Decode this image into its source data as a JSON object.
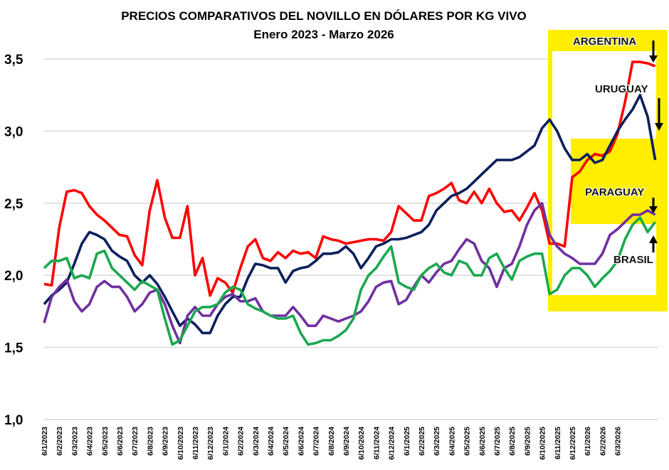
{
  "chart_data": {
    "type": "line",
    "title": "PRECIOS COMPARATIVOS DEL NOVILLO EN DÓLARES POR KG VIVO",
    "subtitle": "Enero 2023 - Marzo 2026",
    "xlabel": "",
    "ylabel": "",
    "ylim": [
      1.0,
      3.5
    ],
    "yticks": [
      "1,0",
      "1,5",
      "2,0",
      "2,5",
      "3,0",
      "3,5"
    ],
    "ytick_values": [
      1.0,
      1.5,
      2.0,
      2.5,
      3.0,
      3.5
    ],
    "grid": true,
    "x_step_months": 0.5,
    "xtick_labels": [
      "6/1/2023",
      "6/2/2023",
      "6/3/2023",
      "6/4/2023",
      "6/5/2023",
      "6/6/2023",
      "6/7/2023",
      "6/8/2023",
      "6/9/2023",
      "6/10/2023",
      "6/11/2023",
      "6/12/2023",
      "6/1/2024",
      "6/2/2024",
      "6/3/2024",
      "6/4/2024",
      "6/5/2024",
      "6/6/2024",
      "6/7/2024",
      "6/8/2024",
      "6/9/2024",
      "6/10/2024",
      "6/11/2024",
      "6/12/2024",
      "6/1/2025",
      "6/2/2025",
      "6/3/2025",
      "6/4/2025",
      "6/5/2025",
      "6/6/2025",
      "6/7/2025",
      "6/8/2025",
      "6/9/2025",
      "6/10/2025",
      "6/11/2025",
      "6/12/2025",
      "6/1/2026",
      "6/2/2026",
      "6/3/2026"
    ],
    "series": [
      {
        "name": "ARGENTINA",
        "color": "#ff0000",
        "values": [
          1.94,
          1.93,
          2.33,
          2.58,
          2.59,
          2.57,
          2.48,
          2.42,
          2.38,
          2.33,
          2.28,
          2.27,
          2.14,
          2.07,
          2.45,
          2.66,
          2.4,
          2.26,
          2.26,
          2.48,
          2.0,
          2.12,
          1.86,
          1.98,
          1.95,
          1.88,
          2.05,
          2.2,
          2.25,
          2.12,
          2.1,
          2.16,
          2.12,
          2.17,
          2.15,
          2.16,
          2.12,
          2.27,
          2.25,
          2.24,
          2.22,
          2.23,
          2.24,
          2.25,
          2.25,
          2.24,
          2.3,
          2.48,
          2.43,
          2.38,
          2.38,
          2.55,
          2.57,
          2.6,
          2.64,
          2.52,
          2.5,
          2.58,
          2.5,
          2.6,
          2.5,
          2.44,
          2.45,
          2.38,
          2.47,
          2.57,
          2.45,
          2.22,
          2.22,
          2.2,
          2.68,
          2.72,
          2.8,
          2.84,
          2.83,
          2.86,
          2.98,
          3.2,
          3.48,
          3.48,
          3.47,
          3.45
        ]
      },
      {
        "name": "URUGUAY",
        "color": "#0b1f5c",
        "values": [
          1.8,
          1.86,
          1.9,
          1.95,
          2.08,
          2.22,
          2.3,
          2.28,
          2.25,
          2.17,
          2.13,
          2.1,
          2.0,
          1.95,
          2.0,
          1.94,
          1.85,
          1.75,
          1.65,
          1.7,
          1.66,
          1.6,
          1.6,
          1.72,
          1.8,
          1.85,
          1.85,
          1.98,
          2.08,
          2.07,
          2.05,
          2.05,
          1.95,
          2.03,
          2.05,
          2.06,
          2.1,
          2.15,
          2.15,
          2.16,
          2.2,
          2.15,
          2.05,
          2.12,
          2.2,
          2.22,
          2.25,
          2.25,
          2.26,
          2.28,
          2.3,
          2.35,
          2.45,
          2.5,
          2.55,
          2.57,
          2.6,
          2.65,
          2.7,
          2.75,
          2.8,
          2.8,
          2.8,
          2.82,
          2.86,
          2.9,
          3.02,
          3.08,
          3.0,
          2.88,
          2.8,
          2.8,
          2.84,
          2.78,
          2.8,
          2.9,
          3.0,
          3.08,
          3.15,
          3.25,
          3.1,
          2.8
        ]
      },
      {
        "name": "PARAGUAY",
        "color": "#7030a0",
        "values": [
          1.67,
          1.85,
          1.92,
          1.97,
          1.82,
          1.75,
          1.8,
          1.92,
          1.96,
          1.92,
          1.92,
          1.85,
          1.75,
          1.8,
          1.88,
          1.9,
          1.8,
          1.65,
          1.53,
          1.72,
          1.78,
          1.72,
          1.72,
          1.8,
          1.85,
          1.87,
          1.82,
          1.82,
          1.84,
          1.75,
          1.72,
          1.72,
          1.72,
          1.78,
          1.72,
          1.65,
          1.65,
          1.72,
          1.7,
          1.68,
          1.7,
          1.72,
          1.75,
          1.82,
          1.92,
          1.95,
          1.96,
          1.8,
          1.83,
          1.92,
          2.0,
          1.95,
          2.02,
          2.08,
          2.1,
          2.18,
          2.25,
          2.22,
          2.1,
          2.05,
          1.92,
          2.05,
          2.08,
          2.2,
          2.35,
          2.45,
          2.5,
          2.28,
          2.2,
          2.15,
          2.12,
          2.08,
          2.08,
          2.08,
          2.15,
          2.28,
          2.32,
          2.37,
          2.42,
          2.42,
          2.45,
          2.42
        ]
      },
      {
        "name": "BRASIL",
        "color": "#1aa84f",
        "values": [
          2.05,
          2.1,
          2.1,
          2.12,
          1.98,
          2.0,
          1.98,
          2.15,
          2.17,
          2.05,
          2.0,
          1.95,
          1.9,
          1.96,
          1.93,
          1.9,
          1.7,
          1.52,
          1.55,
          1.65,
          1.75,
          1.78,
          1.78,
          1.8,
          1.88,
          1.92,
          1.9,
          1.8,
          1.77,
          1.75,
          1.72,
          1.7,
          1.7,
          1.72,
          1.6,
          1.52,
          1.53,
          1.55,
          1.55,
          1.58,
          1.62,
          1.7,
          1.9,
          2.0,
          2.05,
          2.13,
          2.2,
          1.95,
          1.92,
          1.9,
          2.0,
          2.05,
          2.08,
          2.02,
          2.0,
          2.1,
          2.08,
          2.0,
          2.0,
          2.12,
          2.15,
          2.05,
          1.97,
          2.1,
          2.13,
          2.15,
          2.15,
          1.87,
          1.9,
          2.0,
          2.05,
          2.05,
          2.0,
          1.92,
          1.98,
          2.03,
          2.1,
          2.25,
          2.35,
          2.4,
          2.3,
          2.37
        ]
      }
    ],
    "annotations": {
      "inset_highlight_color": "#ffee00",
      "labels": {
        "argentina": "ARGENTINA",
        "uruguay": "URUGUAY",
        "paraguay": "PARAGUAY",
        "brasil": "BRASIL"
      },
      "arrows": {
        "argentina": "down",
        "uruguay": "down",
        "paraguay": "down",
        "brasil": "up"
      }
    }
  }
}
